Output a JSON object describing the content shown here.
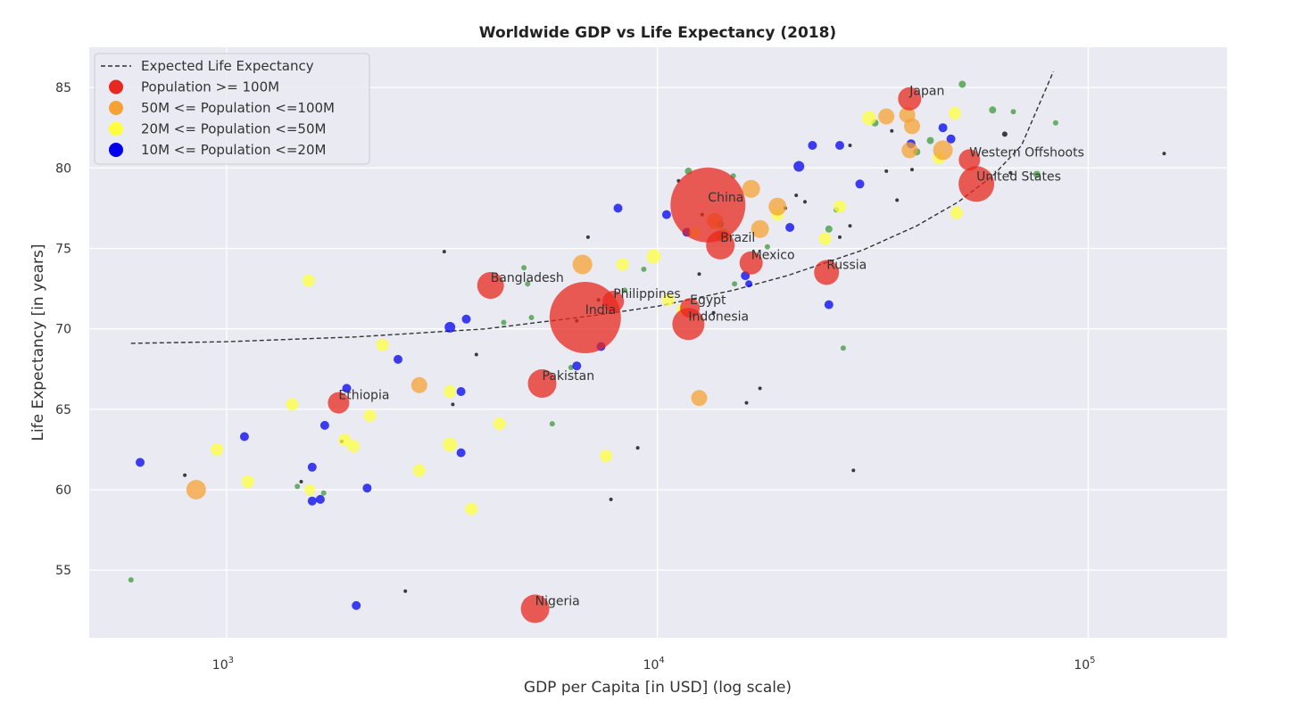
{
  "chart_data": {
    "type": "scatter",
    "title": "Worldwide GDP vs Life Expectancy (2018)",
    "xlabel": "GDP per Capita [in USD] (log scale)",
    "ylabel": "Life Expectancy [in years]",
    "x_scale": "log",
    "xlim": [
      480,
      210000
    ],
    "ylim": [
      50.8,
      87.5
    ],
    "x_ticks": [
      {
        "value": 1000,
        "base": "10",
        "exp": "3"
      },
      {
        "value": 10000,
        "base": "10",
        "exp": "4"
      },
      {
        "value": 100000,
        "base": "10",
        "exp": "5"
      }
    ],
    "y_ticks": [
      55,
      60,
      65,
      70,
      75,
      80,
      85
    ],
    "grid": true,
    "legend_position": "top-left",
    "legend": [
      {
        "label": "Expected Life Expectancy",
        "kind": "line",
        "color": "#333333"
      },
      {
        "label": "Population >= 100M",
        "kind": "marker",
        "color": "#e8281e"
      },
      {
        "label": "50M <= Population  <=100M",
        "kind": "marker",
        "color": "#f5a133"
      },
      {
        "label": "20M <= Population  <=50M",
        "kind": "marker",
        "color": "#ffff40"
      },
      {
        "label": "10M <= Population  <=20M",
        "kind": "marker",
        "color": "#0000ee"
      }
    ],
    "colors": {
      "large": "#e8281e",
      "medium": "#f5a133",
      "small": "#ffff40",
      "tiny": "#0000ee",
      "minor": "#3c9a3c",
      "micro": "#000000",
      "curve": "#333333"
    },
    "expected_curve": [
      {
        "x": 600,
        "y": 69.1
      },
      {
        "x": 1000,
        "y": 69.2
      },
      {
        "x": 2000,
        "y": 69.5
      },
      {
        "x": 4000,
        "y": 70.0
      },
      {
        "x": 7000,
        "y": 70.8
      },
      {
        "x": 10000,
        "y": 71.4
      },
      {
        "x": 15000,
        "y": 72.4
      },
      {
        "x": 20000,
        "y": 73.3
      },
      {
        "x": 30000,
        "y": 74.9
      },
      {
        "x": 40000,
        "y": 76.4
      },
      {
        "x": 50000,
        "y": 77.9
      },
      {
        "x": 60000,
        "y": 79.5
      },
      {
        "x": 70000,
        "y": 81.4
      },
      {
        "x": 83000,
        "y": 86.0
      }
    ],
    "labeled_points": [
      {
        "name": "China",
        "x": 13100,
        "y": 77.7,
        "r": 42
      },
      {
        "name": "India",
        "x": 6800,
        "y": 70.7,
        "r": 40
      },
      {
        "name": "United States",
        "x": 55000,
        "y": 79.0,
        "r": 20
      },
      {
        "name": "Indonesia",
        "x": 11800,
        "y": 70.3,
        "r": 18
      },
      {
        "name": "Pakistan",
        "x": 5400,
        "y": 66.6,
        "r": 16
      },
      {
        "name": "Nigeria",
        "x": 5200,
        "y": 52.6,
        "r": 16
      },
      {
        "name": "Brazil",
        "x": 14000,
        "y": 75.2,
        "r": 16
      },
      {
        "name": "Bangladesh",
        "x": 4100,
        "y": 72.7,
        "r": 15
      },
      {
        "name": "Russia",
        "x": 24700,
        "y": 73.5,
        "r": 14
      },
      {
        "name": "Mexico",
        "x": 16500,
        "y": 74.1,
        "r": 13
      },
      {
        "name": "Japan",
        "x": 38500,
        "y": 84.3,
        "r": 13
      },
      {
        "name": "Ethiopia",
        "x": 1820,
        "y": 65.4,
        "r": 12
      },
      {
        "name": "Philippines",
        "x": 7900,
        "y": 71.7,
        "r": 12
      },
      {
        "name": "Egypt",
        "x": 11900,
        "y": 71.3,
        "r": 11
      },
      {
        "name": "Western Offshoots",
        "x": 53000,
        "y": 80.5,
        "r": 12
      }
    ],
    "other_points": [
      {
        "x": 38000,
        "y": 83.3,
        "c": "medium",
        "r": 9
      },
      {
        "x": 34000,
        "y": 83.2,
        "c": "medium",
        "r": 9
      },
      {
        "x": 39000,
        "y": 82.6,
        "c": "medium",
        "r": 9
      },
      {
        "x": 38500,
        "y": 81.1,
        "c": "medium",
        "r": 9
      },
      {
        "x": 46000,
        "y": 81.1,
        "c": "medium",
        "r": 11
      },
      {
        "x": 16500,
        "y": 78.7,
        "c": "medium",
        "r": 10
      },
      {
        "x": 19000,
        "y": 77.6,
        "c": "medium",
        "r": 10
      },
      {
        "x": 17300,
        "y": 76.2,
        "c": "medium",
        "r": 10
      },
      {
        "x": 6700,
        "y": 74.0,
        "c": "medium",
        "r": 11
      },
      {
        "x": 2800,
        "y": 66.5,
        "c": "medium",
        "r": 9
      },
      {
        "x": 12500,
        "y": 65.7,
        "c": "medium",
        "r": 9
      },
      {
        "x": 850,
        "y": 60.0,
        "c": "medium",
        "r": 11
      },
      {
        "x": 13600,
        "y": 76.7,
        "c": "medium",
        "r": 9
      },
      {
        "x": 14200,
        "y": 75.8,
        "c": "medium",
        "r": 8
      },
      {
        "x": 31000,
        "y": 83.1,
        "c": "small",
        "r": 8
      },
      {
        "x": 49000,
        "y": 83.4,
        "c": "small",
        "r": 7
      },
      {
        "x": 45000,
        "y": 80.6,
        "c": "small",
        "r": 7
      },
      {
        "x": 49500,
        "y": 77.2,
        "c": "small",
        "r": 7
      },
      {
        "x": 19000,
        "y": 77.1,
        "c": "small",
        "r": 7
      },
      {
        "x": 26500,
        "y": 77.6,
        "c": "small",
        "r": 7
      },
      {
        "x": 24500,
        "y": 75.6,
        "c": "small",
        "r": 7
      },
      {
        "x": 9800,
        "y": 74.5,
        "c": "small",
        "r": 8
      },
      {
        "x": 8300,
        "y": 74.0,
        "c": "small",
        "r": 7
      },
      {
        "x": 12200,
        "y": 76.0,
        "c": "small",
        "r": 6
      },
      {
        "x": 1550,
        "y": 73.0,
        "c": "small",
        "r": 7
      },
      {
        "x": 2300,
        "y": 69.0,
        "c": "small",
        "r": 7
      },
      {
        "x": 10600,
        "y": 71.8,
        "c": "small",
        "r": 7
      },
      {
        "x": 1420,
        "y": 65.3,
        "c": "small",
        "r": 7
      },
      {
        "x": 2150,
        "y": 64.6,
        "c": "small",
        "r": 7
      },
      {
        "x": 4300,
        "y": 64.1,
        "c": "small",
        "r": 7
      },
      {
        "x": 3300,
        "y": 66.1,
        "c": "small",
        "r": 7
      },
      {
        "x": 1880,
        "y": 63.1,
        "c": "small",
        "r": 7
      },
      {
        "x": 1970,
        "y": 62.7,
        "c": "small",
        "r": 7
      },
      {
        "x": 3300,
        "y": 62.8,
        "c": "small",
        "r": 8
      },
      {
        "x": 2800,
        "y": 61.2,
        "c": "small",
        "r": 7
      },
      {
        "x": 950,
        "y": 62.5,
        "c": "small",
        "r": 7
      },
      {
        "x": 1120,
        "y": 60.5,
        "c": "small",
        "r": 7
      },
      {
        "x": 1560,
        "y": 60.0,
        "c": "small",
        "r": 6
      },
      {
        "x": 3700,
        "y": 58.8,
        "c": "small",
        "r": 7
      },
      {
        "x": 7600,
        "y": 62.1,
        "c": "small",
        "r": 7
      },
      {
        "x": 11400,
        "y": 71.2,
        "c": "small",
        "r": 6
      },
      {
        "x": 21300,
        "y": 80.1,
        "c": "tiny",
        "r": 6
      },
      {
        "x": 22900,
        "y": 81.4,
        "c": "tiny",
        "r": 5
      },
      {
        "x": 26500,
        "y": 81.4,
        "c": "tiny",
        "r": 5
      },
      {
        "x": 29500,
        "y": 79.0,
        "c": "tiny",
        "r": 5
      },
      {
        "x": 46000,
        "y": 82.5,
        "c": "tiny",
        "r": 5
      },
      {
        "x": 48000,
        "y": 81.8,
        "c": "tiny",
        "r": 5
      },
      {
        "x": 8100,
        "y": 77.5,
        "c": "tiny",
        "r": 5
      },
      {
        "x": 10500,
        "y": 77.1,
        "c": "tiny",
        "r": 5
      },
      {
        "x": 11700,
        "y": 76.0,
        "c": "tiny",
        "r": 5
      },
      {
        "x": 20300,
        "y": 76.3,
        "c": "tiny",
        "r": 5
      },
      {
        "x": 25000,
        "y": 71.5,
        "c": "tiny",
        "r": 5
      },
      {
        "x": 16000,
        "y": 73.3,
        "c": "tiny",
        "r": 5
      },
      {
        "x": 3600,
        "y": 70.6,
        "c": "tiny",
        "r": 5
      },
      {
        "x": 3300,
        "y": 70.1,
        "c": "tiny",
        "r": 6
      },
      {
        "x": 7400,
        "y": 68.9,
        "c": "tiny",
        "r": 5
      },
      {
        "x": 6500,
        "y": 67.7,
        "c": "tiny",
        "r": 5
      },
      {
        "x": 2500,
        "y": 68.1,
        "c": "tiny",
        "r": 5
      },
      {
        "x": 3500,
        "y": 66.1,
        "c": "tiny",
        "r": 5
      },
      {
        "x": 1900,
        "y": 66.3,
        "c": "tiny",
        "r": 5
      },
      {
        "x": 1690,
        "y": 64.0,
        "c": "tiny",
        "r": 5
      },
      {
        "x": 1100,
        "y": 63.3,
        "c": "tiny",
        "r": 5
      },
      {
        "x": 3500,
        "y": 62.3,
        "c": "tiny",
        "r": 5
      },
      {
        "x": 2120,
        "y": 60.1,
        "c": "tiny",
        "r": 5
      },
      {
        "x": 1580,
        "y": 61.4,
        "c": "tiny",
        "r": 5
      },
      {
        "x": 1580,
        "y": 59.3,
        "c": "tiny",
        "r": 5
      },
      {
        "x": 1650,
        "y": 59.4,
        "c": "tiny",
        "r": 5
      },
      {
        "x": 630,
        "y": 61.7,
        "c": "tiny",
        "r": 5
      },
      {
        "x": 2000,
        "y": 52.8,
        "c": "tiny",
        "r": 5
      },
      {
        "x": 38800,
        "y": 81.5,
        "c": "tiny",
        "r": 5
      },
      {
        "x": 16300,
        "y": 72.8,
        "c": "tiny",
        "r": 4
      },
      {
        "x": 51000,
        "y": 85.2,
        "c": "minor",
        "r": 4
      },
      {
        "x": 60000,
        "y": 83.6,
        "c": "minor",
        "r": 4
      },
      {
        "x": 67000,
        "y": 83.5,
        "c": "minor",
        "r": 3
      },
      {
        "x": 84000,
        "y": 82.8,
        "c": "minor",
        "r": 3
      },
      {
        "x": 32000,
        "y": 82.8,
        "c": "minor",
        "r": 4
      },
      {
        "x": 43000,
        "y": 81.7,
        "c": "minor",
        "r": 4
      },
      {
        "x": 40000,
        "y": 81.0,
        "c": "minor",
        "r": 4
      },
      {
        "x": 76000,
        "y": 79.6,
        "c": "minor",
        "r": 4
      },
      {
        "x": 11800,
        "y": 79.8,
        "c": "minor",
        "r": 4
      },
      {
        "x": 15000,
        "y": 79.5,
        "c": "minor",
        "r": 3
      },
      {
        "x": 14000,
        "y": 76.5,
        "c": "minor",
        "r": 4
      },
      {
        "x": 25000,
        "y": 76.2,
        "c": "minor",
        "r": 4
      },
      {
        "x": 26000,
        "y": 77.4,
        "c": "minor",
        "r": 3
      },
      {
        "x": 18000,
        "y": 75.1,
        "c": "minor",
        "r": 3
      },
      {
        "x": 9300,
        "y": 73.7,
        "c": "minor",
        "r": 3
      },
      {
        "x": 4900,
        "y": 73.8,
        "c": "minor",
        "r": 3
      },
      {
        "x": 5000,
        "y": 72.8,
        "c": "minor",
        "r": 3
      },
      {
        "x": 15100,
        "y": 72.8,
        "c": "minor",
        "r": 3
      },
      {
        "x": 8400,
        "y": 72.4,
        "c": "minor",
        "r": 3
      },
      {
        "x": 4400,
        "y": 70.4,
        "c": "minor",
        "r": 3
      },
      {
        "x": 5100,
        "y": 70.7,
        "c": "minor",
        "r": 3
      },
      {
        "x": 6300,
        "y": 67.6,
        "c": "minor",
        "r": 3
      },
      {
        "x": 5700,
        "y": 64.1,
        "c": "minor",
        "r": 3
      },
      {
        "x": 1460,
        "y": 60.2,
        "c": "minor",
        "r": 3
      },
      {
        "x": 1680,
        "y": 59.8,
        "c": "minor",
        "r": 3
      },
      {
        "x": 600,
        "y": 54.4,
        "c": "minor",
        "r": 3
      },
      {
        "x": 27000,
        "y": 68.8,
        "c": "minor",
        "r": 3
      },
      {
        "x": 150000,
        "y": 80.9,
        "c": "micro",
        "r": 2
      },
      {
        "x": 64000,
        "y": 82.1,
        "c": "micro",
        "r": 3
      },
      {
        "x": 66000,
        "y": 79.7,
        "c": "micro",
        "r": 2
      },
      {
        "x": 35000,
        "y": 82.3,
        "c": "micro",
        "r": 2
      },
      {
        "x": 34000,
        "y": 79.8,
        "c": "micro",
        "r": 2
      },
      {
        "x": 36000,
        "y": 78.0,
        "c": "micro",
        "r": 2
      },
      {
        "x": 39000,
        "y": 79.9,
        "c": "micro",
        "r": 2
      },
      {
        "x": 28000,
        "y": 81.4,
        "c": "micro",
        "r": 2
      },
      {
        "x": 11200,
        "y": 79.2,
        "c": "micro",
        "r": 2
      },
      {
        "x": 12700,
        "y": 77.1,
        "c": "micro",
        "r": 2
      },
      {
        "x": 21000,
        "y": 78.3,
        "c": "micro",
        "r": 2
      },
      {
        "x": 22000,
        "y": 77.9,
        "c": "micro",
        "r": 2
      },
      {
        "x": 19800,
        "y": 77.5,
        "c": "micro",
        "r": 2
      },
      {
        "x": 26500,
        "y": 75.7,
        "c": "micro",
        "r": 2
      },
      {
        "x": 28000,
        "y": 76.4,
        "c": "micro",
        "r": 2
      },
      {
        "x": 12500,
        "y": 73.4,
        "c": "micro",
        "r": 2
      },
      {
        "x": 13500,
        "y": 71.0,
        "c": "micro",
        "r": 2
      },
      {
        "x": 3200,
        "y": 74.8,
        "c": "micro",
        "r": 2
      },
      {
        "x": 6900,
        "y": 75.7,
        "c": "micro",
        "r": 2
      },
      {
        "x": 6500,
        "y": 70.5,
        "c": "micro",
        "r": 2
      },
      {
        "x": 7300,
        "y": 71.8,
        "c": "micro",
        "r": 2
      },
      {
        "x": 3800,
        "y": 68.4,
        "c": "micro",
        "r": 2
      },
      {
        "x": 3350,
        "y": 65.3,
        "c": "micro",
        "r": 2
      },
      {
        "x": 17300,
        "y": 66.3,
        "c": "micro",
        "r": 2
      },
      {
        "x": 16100,
        "y": 65.4,
        "c": "micro",
        "r": 2
      },
      {
        "x": 9000,
        "y": 62.6,
        "c": "micro",
        "r": 2
      },
      {
        "x": 28500,
        "y": 61.2,
        "c": "micro",
        "r": 2
      },
      {
        "x": 7800,
        "y": 59.4,
        "c": "micro",
        "r": 2
      },
      {
        "x": 2600,
        "y": 53.7,
        "c": "micro",
        "r": 2
      },
      {
        "x": 1850,
        "y": 63.0,
        "c": "micro",
        "r": 2
      },
      {
        "x": 800,
        "y": 60.9,
        "c": "micro",
        "r": 2
      },
      {
        "x": 1490,
        "y": 60.5,
        "c": "micro",
        "r": 2
      }
    ]
  }
}
